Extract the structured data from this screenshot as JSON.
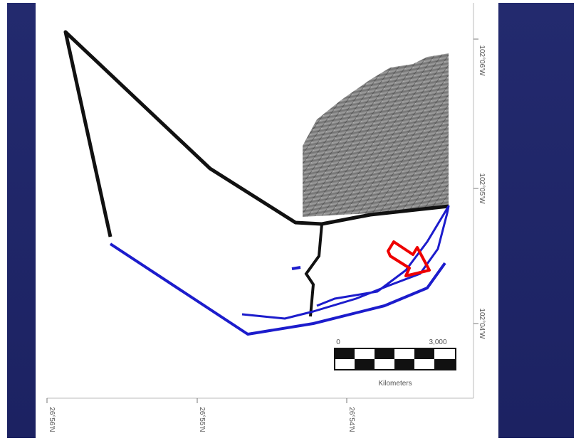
{
  "map": {
    "longitude_labels": [
      "102°06'W",
      "102°05'W",
      "102°04'W"
    ],
    "latitude_labels": [
      "26°56'N",
      "26°55'N",
      "26°54'N"
    ],
    "scale_bar": {
      "start": "0",
      "end": "3,000",
      "unit": "Kilometers"
    }
  }
}
